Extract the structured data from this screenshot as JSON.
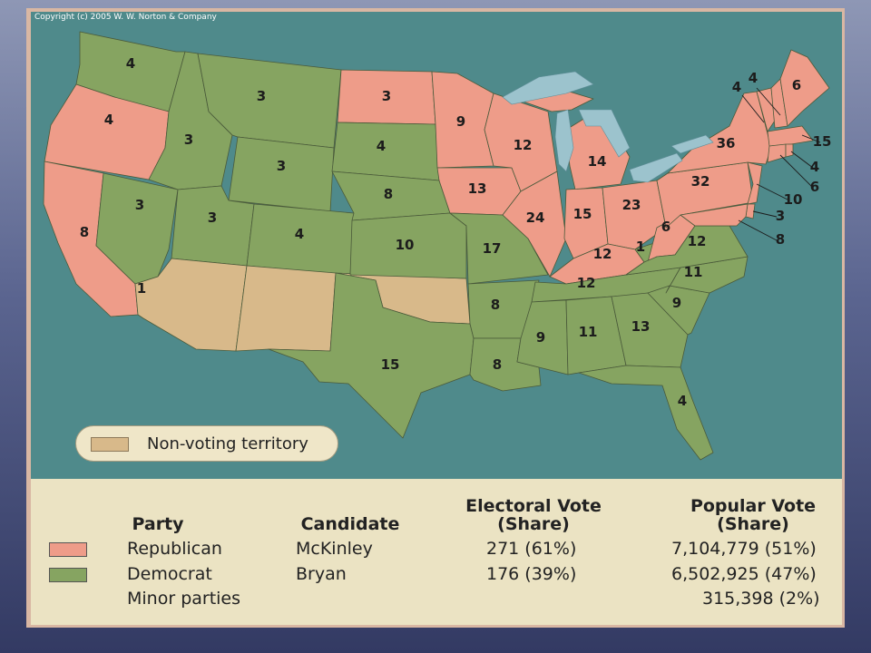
{
  "copyright": "Copyright (c) 2005 W. W. Norton & Company",
  "colors": {
    "republican": "#ee9c89",
    "democrat": "#86a461",
    "non_voting": "#d8b98a",
    "water": "#4f8a8b",
    "lakes": "#9cc3cd"
  },
  "map_legend": {
    "non_voting_label": "Non-voting territory"
  },
  "electoral_labels": [
    {
      "state": "Washington",
      "votes": "4"
    },
    {
      "state": "Oregon",
      "votes": "4"
    },
    {
      "state": "California",
      "votes": "8"
    },
    {
      "state": "Nevada",
      "votes": "3"
    },
    {
      "state": "Idaho",
      "votes": "3"
    },
    {
      "state": "Montana",
      "votes": "3"
    },
    {
      "state": "Wyoming",
      "votes": "3"
    },
    {
      "state": "Utah",
      "votes": "3"
    },
    {
      "state": "Colorado",
      "votes": "4"
    },
    {
      "state": "North Dakota",
      "votes": "3"
    },
    {
      "state": "South Dakota",
      "votes": "4"
    },
    {
      "state": "Nebraska",
      "votes": "8"
    },
    {
      "state": "Kansas",
      "votes": "10"
    },
    {
      "state": "Texas",
      "votes": "15"
    },
    {
      "state": "Minnesota",
      "votes": "9"
    },
    {
      "state": "Iowa",
      "votes": "13"
    },
    {
      "state": "Missouri",
      "votes": "17"
    },
    {
      "state": "Arkansas",
      "votes": "8"
    },
    {
      "state": "Louisiana",
      "votes": "8"
    },
    {
      "state": "Wisconsin",
      "votes": "12"
    },
    {
      "state": "Illinois",
      "votes": "24"
    },
    {
      "state": "Michigan",
      "votes": "14"
    },
    {
      "state": "Indiana",
      "votes": "15"
    },
    {
      "state": "Ohio",
      "votes": "23"
    },
    {
      "state": "Kentucky",
      "votes": "12"
    },
    {
      "state": "Tennessee",
      "votes": "12"
    },
    {
      "state": "Mississippi",
      "votes": "9"
    },
    {
      "state": "Alabama",
      "votes": "11"
    },
    {
      "state": "Georgia",
      "votes": "13"
    },
    {
      "state": "Florida",
      "votes": "4"
    },
    {
      "state": "South Carolina",
      "votes": "9"
    },
    {
      "state": "North Carolina",
      "votes": "11"
    },
    {
      "state": "Virginia",
      "votes": "12"
    },
    {
      "state": "West Virginia",
      "votes": "6"
    },
    {
      "state": "Kentucky detached",
      "votes": "1"
    },
    {
      "state": "California strip",
      "votes": "1"
    },
    {
      "state": "Pennsylvania",
      "votes": "32"
    },
    {
      "state": "New York",
      "votes": "36"
    },
    {
      "state": "Vermont",
      "votes": "4"
    },
    {
      "state": "New Hampshire",
      "votes": "4"
    },
    {
      "state": "Maine",
      "votes": "6"
    },
    {
      "state": "Massachusetts",
      "votes": "15"
    },
    {
      "state": "Rhode Island",
      "votes": "4"
    },
    {
      "state": "Connecticut",
      "votes": "6"
    },
    {
      "state": "New Jersey",
      "votes": "10"
    },
    {
      "state": "Delaware",
      "votes": "3"
    },
    {
      "state": "Maryland",
      "votes": "8"
    }
  ],
  "results_table": {
    "headers": {
      "party": "Party",
      "candidate": "Candidate",
      "electoral_line1": "Electoral Vote",
      "electoral_line2": "(Share)",
      "popular_line1": "Popular Vote",
      "popular_line2": "(Share)"
    },
    "rows": [
      {
        "party": "Republican",
        "candidate": "McKinley",
        "electoral": "271 (61%)",
        "popular": "7,104,779 (51%)",
        "color": "#ee9c89"
      },
      {
        "party": "Democrat",
        "candidate": "Bryan",
        "electoral": "176 (39%)",
        "popular": "6,502,925 (47%)",
        "color": "#86a461"
      },
      {
        "party": "Minor parties",
        "candidate": "",
        "electoral": "",
        "popular": "315,398 (2%)",
        "color": ""
      }
    ]
  }
}
